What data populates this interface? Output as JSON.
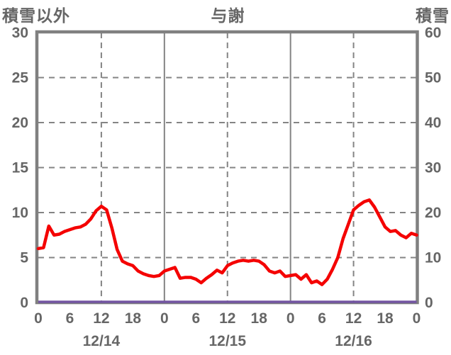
{
  "header": {
    "left_axis_title": "積雪以外",
    "title": "与謝",
    "right_axis_title": "積雪"
  },
  "chart_data": {
    "type": "line",
    "title": "与謝",
    "x_unit": "hour",
    "x_range_hours": [
      0,
      72
    ],
    "x_tick_hours": [
      0,
      6,
      12,
      18,
      24,
      30,
      36,
      42,
      48,
      54,
      60,
      66,
      72
    ],
    "x_tick_labels": [
      "0",
      "6",
      "12",
      "18",
      "0",
      "6",
      "12",
      "18",
      "0",
      "6",
      "12",
      "18",
      "0"
    ],
    "date_labels": [
      {
        "label": "12/14",
        "center_hour": 12
      },
      {
        "label": "12/15",
        "center_hour": 36
      },
      {
        "label": "12/16",
        "center_hour": 60
      }
    ],
    "left_axis": {
      "title": "積雪以外",
      "min": 0,
      "max": 30,
      "ticks": [
        0,
        5,
        10,
        15,
        20,
        25,
        30
      ]
    },
    "right_axis": {
      "title": "積雪",
      "min": 0,
      "max": 60,
      "ticks": [
        0,
        10,
        20,
        30,
        40,
        50,
        60
      ]
    },
    "grid": {
      "h_dashed_values_left_axis": [
        5,
        10,
        15,
        20,
        25
      ],
      "v_solid_hours": [
        24,
        48
      ],
      "v_dashed_hours": [
        12,
        36,
        60
      ]
    },
    "series": [
      {
        "name": "積雪以外",
        "axis": "left",
        "color": "#f40000",
        "values": [
          6.0,
          6.1,
          8.5,
          7.5,
          7.6,
          7.9,
          8.1,
          8.3,
          8.4,
          8.7,
          9.3,
          10.2,
          10.7,
          10.3,
          8.3,
          5.9,
          4.6,
          4.3,
          4.1,
          3.5,
          3.2,
          3.0,
          2.9,
          3.0,
          3.5,
          3.7,
          3.9,
          2.7,
          2.8,
          2.8,
          2.6,
          2.2,
          2.7,
          3.1,
          3.6,
          3.3,
          4.1,
          4.4,
          4.6,
          4.7,
          4.6,
          4.7,
          4.6,
          4.2,
          3.5,
          3.3,
          3.5,
          2.9,
          3.0,
          3.1,
          2.6,
          3.1,
          2.2,
          2.4,
          2.0,
          2.6,
          3.7,
          5.0,
          7.1,
          8.7,
          10.3,
          10.8,
          11.2,
          11.4,
          10.6,
          9.5,
          8.4,
          7.9,
          8.0,
          7.5,
          7.2,
          7.7,
          7.5
        ]
      },
      {
        "name": "積雪",
        "axis": "right",
        "color": "#7355a2",
        "constant_value": 0
      }
    ],
    "colors": {
      "border": "#808080",
      "grid": "#848484",
      "text": "#666666",
      "background": "#ffffff"
    }
  }
}
